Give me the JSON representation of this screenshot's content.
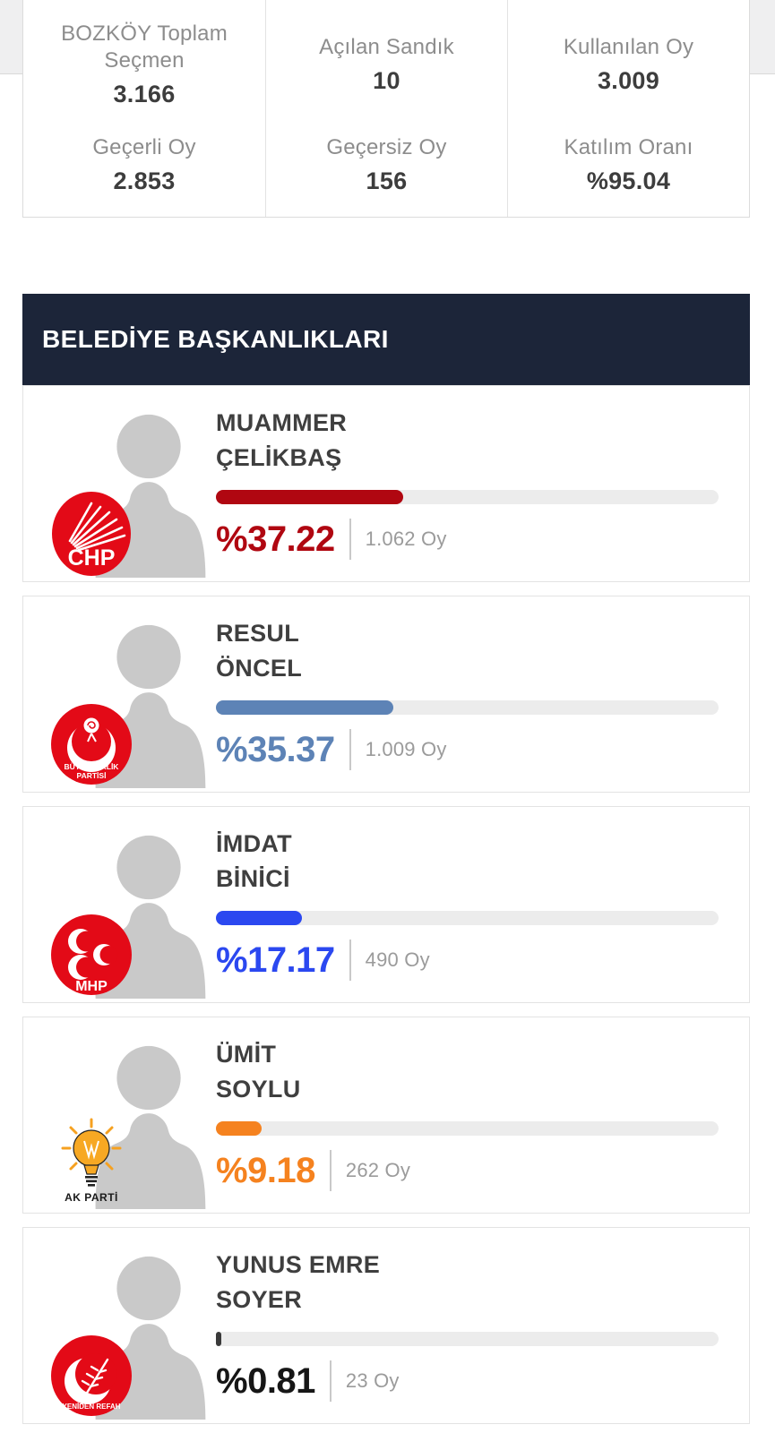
{
  "stats": {
    "cells": [
      {
        "label": "BOZKÖY Toplam Seçmen",
        "value": "3.166"
      },
      {
        "label": "Açılan Sandık",
        "value": "10"
      },
      {
        "label": "Kullanılan Oy",
        "value": "3.009"
      },
      {
        "label": "Geçerli Oy",
        "value": "2.853"
      },
      {
        "label": "Geçersiz Oy",
        "value": "156"
      },
      {
        "label": "Katılım Oranı",
        "value": "%95.04"
      }
    ]
  },
  "section": {
    "title": "BELEDİYE BAŞKANLIKLARI",
    "header_color": "#1c2539"
  },
  "candidates": [
    {
      "first_name": "MUAMMER",
      "last_name": "ÇELİKBAŞ",
      "party": "CHP",
      "logo_line1": "CHP",
      "percent_label": "%37.22",
      "percent": 37.22,
      "votes_label": "1.062 Oy",
      "color": "#b00711"
    },
    {
      "first_name": "RESUL",
      "last_name": "ÖNCEL",
      "party": "BÜYÜK BİRLİK PARTİSİ",
      "logo_line1": "BÜYÜK BİRLİK",
      "logo_line2": "PARTİSİ",
      "percent_label": "%35.37",
      "percent": 35.37,
      "votes_label": "1.009 Oy",
      "color": "#5d83b6"
    },
    {
      "first_name": "İMDAT",
      "last_name": "BİNİCİ",
      "party": "MHP",
      "logo_line1": "MHP",
      "percent_label": "%17.17",
      "percent": 17.17,
      "votes_label": "490 Oy",
      "color": "#2b48f0"
    },
    {
      "first_name": "ÜMİT",
      "last_name": "SOYLU",
      "party": "AK PARTİ",
      "logo_line1": "AK PARTİ",
      "percent_label": "%9.18",
      "percent": 9.18,
      "votes_label": "262 Oy",
      "color": "#f5821f"
    },
    {
      "first_name": "YUNUS EMRE",
      "last_name": "SOYER",
      "party": "YENİDEN REFAH",
      "logo_line1": "YENİDEN REFAH",
      "percent_label": "%0.81",
      "percent": 0.81,
      "votes_label": "23 Oy",
      "color": "#3a3a3a",
      "percent_color": "#161616"
    }
  ]
}
